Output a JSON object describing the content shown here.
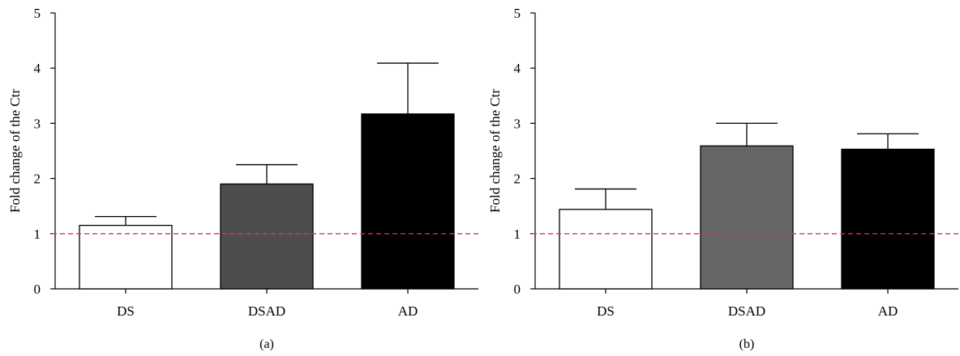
{
  "chart_data": [
    {
      "type": "bar",
      "panel_label": "(a)",
      "ylabel": "Fold change of the Ctr",
      "categories": [
        "DS",
        "DSAD",
        "AD"
      ],
      "values": [
        1.15,
        1.9,
        3.17
      ],
      "errors": [
        0.16,
        0.35,
        0.92
      ],
      "bar_colors": [
        "#ffffff",
        "#4d4d4d",
        "#000000"
      ],
      "reference_line": 1,
      "reference_color": "#d93a3a",
      "ylim": [
        0,
        5
      ],
      "yticks": [
        "0",
        "1",
        "2",
        "3",
        "4",
        "5"
      ],
      "grid": false
    },
    {
      "type": "bar",
      "panel_label": "(b)",
      "ylabel": "Fold change of the Ctr",
      "categories": [
        "DS",
        "DSAD",
        "AD"
      ],
      "values": [
        1.44,
        2.59,
        2.53
      ],
      "errors": [
        0.37,
        0.41,
        0.28
      ],
      "bar_colors": [
        "#ffffff",
        "#666666",
        "#000000"
      ],
      "reference_line": 1,
      "reference_color": "#d93a3a",
      "ylim": [
        0,
        5
      ],
      "yticks": [
        "0",
        "1",
        "2",
        "3",
        "4",
        "5"
      ],
      "grid": false
    }
  ]
}
